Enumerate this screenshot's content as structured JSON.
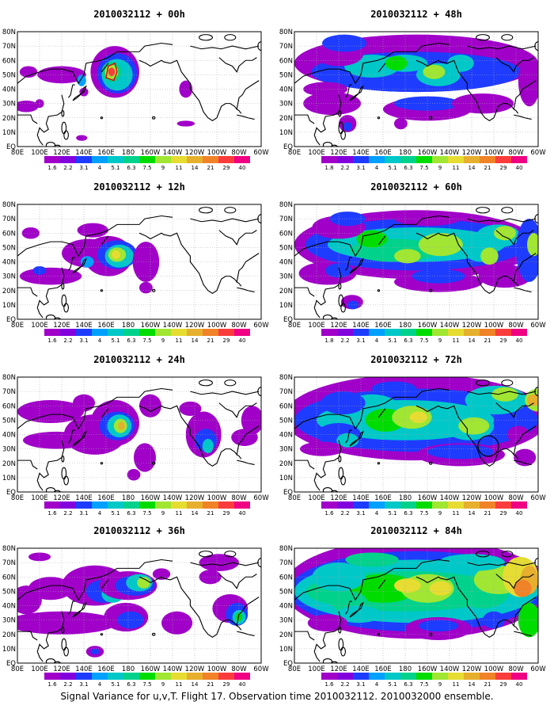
{
  "caption": "Signal Variance for u,v,T. Flight 17. Observation time 2010032112. 2010032000 ensemble.",
  "colors": {
    "levels": [
      "#a000c8",
      "#8200dc",
      "#1e3cff",
      "#00a0ff",
      "#00c8c8",
      "#00d28c",
      "#00dc00",
      "#a0e632",
      "#e6dc32",
      "#e6af2d",
      "#f08228",
      "#fa3c3c",
      "#f00082"
    ],
    "coastline": "#000000",
    "grid": "#aaaaaa",
    "flight_track": "#e60000"
  },
  "chart_data": [
    {
      "type": "heatmap",
      "panel": "00h",
      "title": "2010032112 + 00h",
      "xticks": [
        "80E",
        "100E",
        "120E",
        "140E",
        "160E",
        "180",
        "160W",
        "140W",
        "120W",
        "100W",
        "80W",
        "60W"
      ],
      "yticks": [
        "EQ",
        "10N",
        "20N",
        "30N",
        "40N",
        "50N",
        "60N",
        "70N",
        "80N"
      ],
      "legend_labels": [
        "1.6",
        "2.2",
        "3.1",
        "4",
        "5.1",
        "6.3",
        "7.5",
        "9",
        "11",
        "14",
        "21",
        "29",
        "40"
      ],
      "max_level_index": 12,
      "grid": true
    },
    {
      "type": "heatmap",
      "panel": "12h",
      "title": "2010032112 + 12h",
      "xticks": [
        "80E",
        "100E",
        "120E",
        "140E",
        "160E",
        "180",
        "160W",
        "140W",
        "120W",
        "100W",
        "80W",
        "60W"
      ],
      "yticks": [
        "EQ",
        "10N",
        "20N",
        "30N",
        "40N",
        "50N",
        "60N",
        "70N",
        "80N"
      ],
      "legend_labels": [
        "1.6",
        "2.2",
        "3.1",
        "4",
        "5.1",
        "6.3",
        "7.5",
        "9",
        "11",
        "14",
        "21",
        "29",
        "40"
      ],
      "max_level_index": 8,
      "grid": true
    },
    {
      "type": "heatmap",
      "panel": "24h",
      "title": "2010032112 + 24h",
      "xticks": [
        "80E",
        "100E",
        "120E",
        "140E",
        "160E",
        "180",
        "160W",
        "140W",
        "120W",
        "100W",
        "80W",
        "60W"
      ],
      "yticks": [
        "EQ",
        "10N",
        "20N",
        "30N",
        "40N",
        "50N",
        "60N",
        "70N",
        "80N"
      ],
      "legend_labels": [
        "1.6",
        "2.2",
        "3.1",
        "4",
        "5.1",
        "6.3",
        "7.5",
        "9",
        "11",
        "14",
        "21",
        "29",
        "40"
      ],
      "max_level_index": 9,
      "grid": true
    },
    {
      "type": "heatmap",
      "panel": "36h",
      "title": "2010032112 + 36h",
      "xticks": [
        "80E",
        "100E",
        "120E",
        "140E",
        "160E",
        "180",
        "160W",
        "140W",
        "120W",
        "100W",
        "80W",
        "60W"
      ],
      "yticks": [
        "EQ",
        "10N",
        "20N",
        "30N",
        "40N",
        "50N",
        "60N",
        "70N",
        "80N"
      ],
      "legend_labels": [
        "1.6",
        "2.2",
        "3.1",
        "4",
        "5.1",
        "6.3",
        "7.5",
        "9",
        "11",
        "14",
        "21",
        "29",
        "40"
      ],
      "max_level_index": 8,
      "grid": true
    },
    {
      "type": "heatmap",
      "panel": "48h",
      "title": "2010032112 + 48h",
      "xticks": [
        "80E",
        "100E",
        "120E",
        "140E",
        "160E",
        "180",
        "160W",
        "140W",
        "120W",
        "100W",
        "80W",
        "60W"
      ],
      "yticks": [
        "EQ",
        "10N",
        "20N",
        "30N",
        "40N",
        "50N",
        "60N",
        "70N",
        "80N"
      ],
      "legend_labels": [
        "1.8",
        "2.2",
        "3.1",
        "4",
        "5.1",
        "6.3",
        "7.5",
        "9",
        "11",
        "14",
        "21",
        "29",
        "40"
      ],
      "max_level_index": 8,
      "grid": true
    },
    {
      "type": "heatmap",
      "panel": "60h",
      "title": "2010032112 + 60h",
      "xticks": [
        "80E",
        "100E",
        "120E",
        "140E",
        "160E",
        "180",
        "160W",
        "140W",
        "120W",
        "100W",
        "80W",
        "60W"
      ],
      "yticks": [
        "EQ",
        "10N",
        "20N",
        "30N",
        "40N",
        "50N",
        "60N",
        "70N",
        "80N"
      ],
      "legend_labels": [
        "1.8",
        "2.2",
        "3.1",
        "4",
        "5.1",
        "6.3",
        "7.5",
        "9",
        "11",
        "14",
        "21",
        "29",
        "40"
      ],
      "max_level_index": 8,
      "grid": true
    },
    {
      "type": "heatmap",
      "panel": "72h",
      "title": "2010032112 + 72h",
      "xticks": [
        "80E",
        "100E",
        "120E",
        "140E",
        "160E",
        "180",
        "160W",
        "140W",
        "120W",
        "100W",
        "80W",
        "60W"
      ],
      "yticks": [
        "EQ",
        "10N",
        "20N",
        "30N",
        "40N",
        "50N",
        "60N",
        "70N",
        "80N"
      ],
      "legend_labels": [
        "1.6",
        "2.2",
        "3.1",
        "4",
        "5.1",
        "6.3",
        "7.5",
        "9",
        "11",
        "14",
        "21",
        "29",
        "40"
      ],
      "max_level_index": 9,
      "grid": true
    },
    {
      "type": "heatmap",
      "panel": "84h",
      "title": "2010032112 + 84h",
      "xticks": [
        "80E",
        "100E",
        "120E",
        "140E",
        "160E",
        "180",
        "160W",
        "140W",
        "120W",
        "100W",
        "80W",
        "60W"
      ],
      "yticks": [
        "EQ",
        "10N",
        "20N",
        "30N",
        "40N",
        "50N",
        "60N",
        "70N",
        "80N"
      ],
      "legend_labels": [
        "1.6",
        "2.2",
        "3.1",
        "4",
        "5.1",
        "6.3",
        "7.5",
        "9",
        "11",
        "14",
        "21",
        "29",
        "40"
      ],
      "max_level_index": 10,
      "grid": true
    }
  ]
}
